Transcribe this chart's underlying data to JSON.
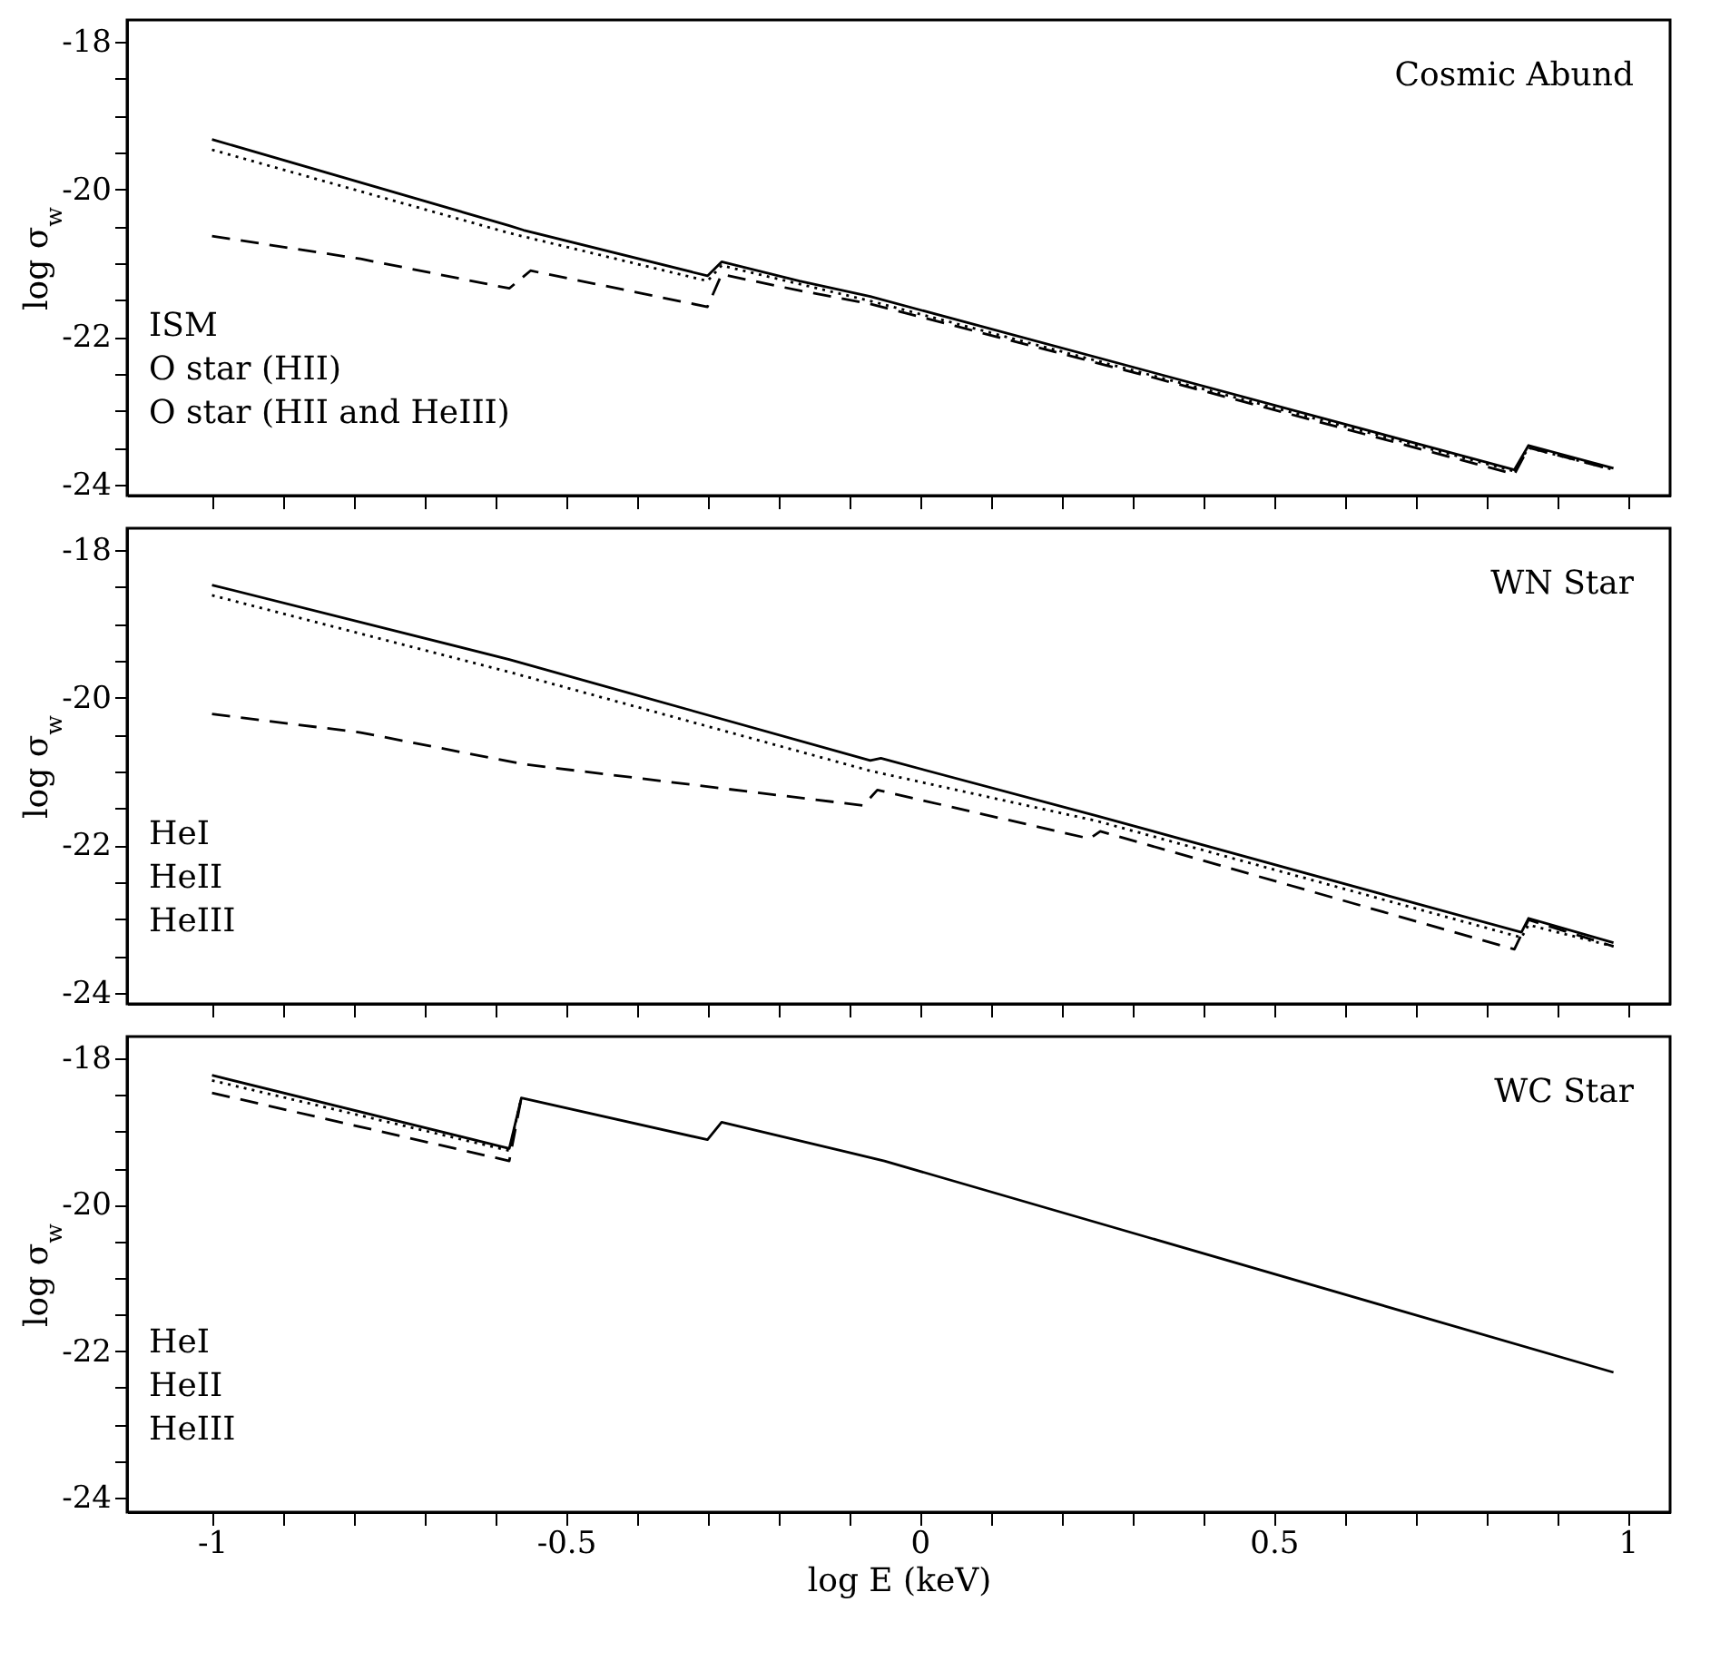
{
  "chart_data": [
    {
      "type": "line",
      "annotations": [
        "Cosmic Abund",
        "ISM",
        "O star (HII)",
        "O star (HII and HeIII)"
      ],
      "ylabel": "log σ$_{w}$",
      "grid": false,
      "tick_labels": "y",
      "xlim": [
        -1.12,
        1.06
      ],
      "xticks": [
        -1,
        {
          "value": -0.9,
          "label": null
        },
        {
          "value": -0.8,
          "label": null
        },
        {
          "value": -0.7,
          "label": null
        },
        {
          "value": -0.6,
          "label": null
        },
        -0.5,
        {
          "value": -0.4,
          "label": null
        },
        {
          "value": -0.3,
          "label": null
        },
        {
          "value": -0.2,
          "label": null
        },
        {
          "value": -0.1,
          "label": null
        },
        0,
        {
          "value": 0.1,
          "label": null
        },
        {
          "value": 0.2,
          "label": null
        },
        {
          "value": 0.3,
          "label": null
        },
        {
          "value": 0.4,
          "label": null
        },
        0.5,
        {
          "value": 0.6,
          "label": null
        },
        {
          "value": 0.7,
          "label": null
        },
        {
          "value": 0.8,
          "label": null
        },
        {
          "value": 0.9,
          "label": null
        },
        1
      ],
      "ylim": [
        -24.15,
        -17.7
      ],
      "yticks": [
        -24,
        {
          "value": -23.5,
          "label": null
        },
        {
          "value": -23,
          "label": null
        },
        {
          "value": -22.5,
          "label": null
        },
        -22,
        {
          "value": -21.5,
          "label": null
        },
        {
          "value": -21,
          "label": null
        },
        {
          "value": -20.5,
          "label": null
        },
        -20,
        {
          "value": -19.5,
          "label": null
        },
        {
          "value": -19,
          "label": null
        },
        {
          "value": -18.5,
          "label": null
        },
        -18
      ],
      "series": [
        {
          "color": "#000000",
          "line_style": "solid",
          "x": [
            -1,
            -0.58,
            -0.56,
            -0.3,
            -0.28,
            -0.17,
            -0.07,
            0.84,
            0.86,
            0.98
          ],
          "values": [
            -19.32,
            -20.49,
            -20.55,
            -21.17,
            -20.98,
            -21.24,
            -21.45,
            -23.8,
            -23.47,
            -23.78
          ]
        },
        {
          "color": "#000000",
          "line_style": "dotted",
          "x": [
            -1,
            -0.58,
            -0.3,
            -0.28,
            -0.07,
            0.84,
            0.86,
            0.98
          ],
          "values": [
            -19.46,
            -20.59,
            -21.24,
            -21.03,
            -21.51,
            -23.82,
            -23.5,
            -23.8
          ]
        },
        {
          "color": "#000000",
          "line_style": "dashed",
          "x": [
            -1,
            -0.79,
            -0.58,
            -0.55,
            -0.3,
            -0.28,
            -0.17,
            -0.07,
            0.33,
            0.84,
            0.86,
            0.98
          ],
          "values": [
            -20.63,
            -20.94,
            -21.34,
            -21.1,
            -21.59,
            -21.15,
            -21.37,
            -21.55,
            -22.55,
            -23.86,
            -23.5,
            -23.8
          ]
        }
      ]
    },
    {
      "type": "line",
      "annotations": [
        "WN Star",
        "HeI",
        "HeII",
        "HeIII"
      ],
      "ylabel": "log σ$_{w}$",
      "grid": false,
      "tick_labels": "y",
      "xlim": [
        -1.12,
        1.06
      ],
      "xticks": [
        -1,
        {
          "value": -0.9,
          "label": null
        },
        {
          "value": -0.8,
          "label": null
        },
        {
          "value": -0.7,
          "label": null
        },
        {
          "value": -0.6,
          "label": null
        },
        -0.5,
        {
          "value": -0.4,
          "label": null
        },
        {
          "value": -0.3,
          "label": null
        },
        {
          "value": -0.2,
          "label": null
        },
        {
          "value": -0.1,
          "label": null
        },
        0,
        {
          "value": 0.1,
          "label": null
        },
        {
          "value": 0.2,
          "label": null
        },
        {
          "value": 0.3,
          "label": null
        },
        {
          "value": 0.4,
          "label": null
        },
        0.5,
        {
          "value": 0.6,
          "label": null
        },
        {
          "value": 0.7,
          "label": null
        },
        {
          "value": 0.8,
          "label": null
        },
        {
          "value": 0.9,
          "label": null
        },
        1
      ],
      "ylim": [
        -24.15,
        -17.7
      ],
      "yticks": [
        -24,
        {
          "value": -23.5,
          "label": null
        },
        {
          "value": -23,
          "label": null
        },
        {
          "value": -22.5,
          "label": null
        },
        -22,
        {
          "value": -21.5,
          "label": null
        },
        {
          "value": -21,
          "label": null
        },
        {
          "value": -20.5,
          "label": null
        },
        -20,
        {
          "value": -19.5,
          "label": null
        },
        {
          "value": -19,
          "label": null
        },
        {
          "value": -18.5,
          "label": null
        },
        -18
      ],
      "series": [
        {
          "color": "#000000",
          "line_style": "solid",
          "x": [
            -1,
            -0.58,
            -0.07,
            -0.055,
            0.25,
            0.85,
            0.86,
            0.98
          ],
          "values": [
            -18.47,
            -19.48,
            -20.85,
            -20.82,
            -21.6,
            -23.18,
            -22.99,
            -23.32
          ]
        },
        {
          "color": "#000000",
          "line_style": "dotted",
          "x": [
            -1,
            -0.58,
            -0.07,
            0.25,
            0.85,
            0.86,
            0.98
          ],
          "values": [
            -18.61,
            -19.65,
            -20.99,
            -21.67,
            -23.25,
            -23.08,
            -23.37
          ]
        },
        {
          "color": "#000000",
          "line_style": "dashed",
          "x": [
            -1,
            -0.79,
            -0.56,
            -0.08,
            -0.06,
            0.24,
            0.255,
            0.84,
            0.86,
            0.98
          ],
          "values": [
            -20.22,
            -20.47,
            -20.9,
            -21.46,
            -21.25,
            -21.91,
            -21.81,
            -23.41,
            -23.01,
            -23.37
          ]
        }
      ]
    },
    {
      "type": "line",
      "annotations": [
        "WC Star",
        "HeI",
        "HeII",
        "HeIII"
      ],
      "xlabel": "log E (keV)",
      "ylabel": "log σ$_{w}$",
      "grid": false,
      "xlim": [
        -1.12,
        1.06
      ],
      "xticks": [
        -1,
        {
          "value": -0.9,
          "label": null
        },
        {
          "value": -0.8,
          "label": null
        },
        {
          "value": -0.7,
          "label": null
        },
        {
          "value": -0.6,
          "label": null
        },
        -0.5,
        {
          "value": -0.4,
          "label": null
        },
        {
          "value": -0.3,
          "label": null
        },
        {
          "value": -0.2,
          "label": null
        },
        {
          "value": -0.1,
          "label": null
        },
        0,
        {
          "value": 0.1,
          "label": null
        },
        {
          "value": 0.2,
          "label": null
        },
        {
          "value": 0.3,
          "label": null
        },
        {
          "value": 0.4,
          "label": null
        },
        0.5,
        {
          "value": 0.6,
          "label": null
        },
        {
          "value": 0.7,
          "label": null
        },
        {
          "value": 0.8,
          "label": null
        },
        {
          "value": 0.9,
          "label": null
        },
        1
      ],
      "ylim": [
        -24.2,
        -17.7
      ],
      "yticks": [
        -24,
        {
          "value": -23.5,
          "label": null
        },
        {
          "value": -23,
          "label": null
        },
        {
          "value": -22.5,
          "label": null
        },
        -22,
        {
          "value": -21.5,
          "label": null
        },
        {
          "value": -21,
          "label": null
        },
        {
          "value": -20.5,
          "label": null
        },
        -20,
        {
          "value": -19.5,
          "label": null
        },
        {
          "value": -19,
          "label": null
        },
        {
          "value": -18.5,
          "label": null
        },
        -18
      ],
      "series": [
        {
          "color": "#000000",
          "line_style": "solid",
          "x": [
            -1,
            -0.58,
            -0.563,
            -0.3,
            -0.28,
            -0.05,
            0.98
          ],
          "values": [
            -18.23,
            -19.23,
            -18.54,
            -19.11,
            -18.87,
            -19.4,
            -22.29
          ]
        },
        {
          "color": "#000000",
          "line_style": "dotted",
          "x": [
            -1,
            -0.58,
            -0.563
          ],
          "values": [
            -18.3,
            -19.26,
            -18.54
          ]
        },
        {
          "color": "#000000",
          "line_style": "dashed",
          "x": [
            -1,
            -0.58,
            -0.563
          ],
          "values": [
            -18.47,
            -19.4,
            -18.54
          ]
        }
      ]
    }
  ]
}
